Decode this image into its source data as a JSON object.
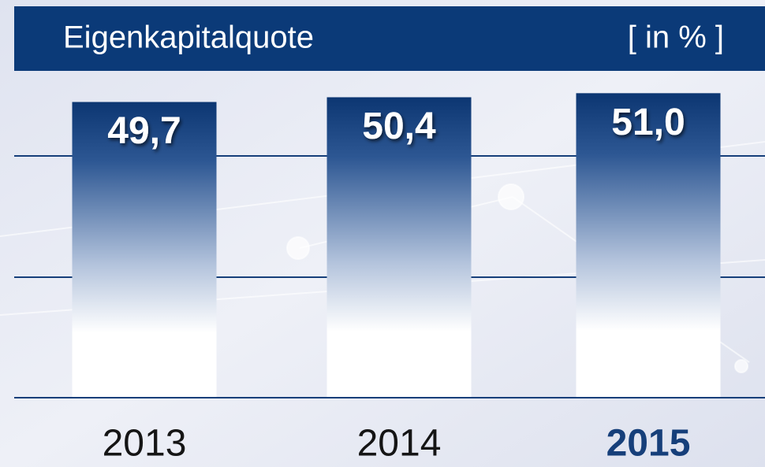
{
  "chart_data": {
    "type": "bar",
    "title": "Eigenkapitalquote",
    "unit": "[ in % ]",
    "categories": [
      "2013",
      "2014",
      "2015"
    ],
    "values": [
      49.7,
      50.4,
      51.0
    ],
    "value_labels": [
      "49,7",
      "50,4",
      "51,0"
    ],
    "ylim": [
      6,
      60
    ]
  }
}
